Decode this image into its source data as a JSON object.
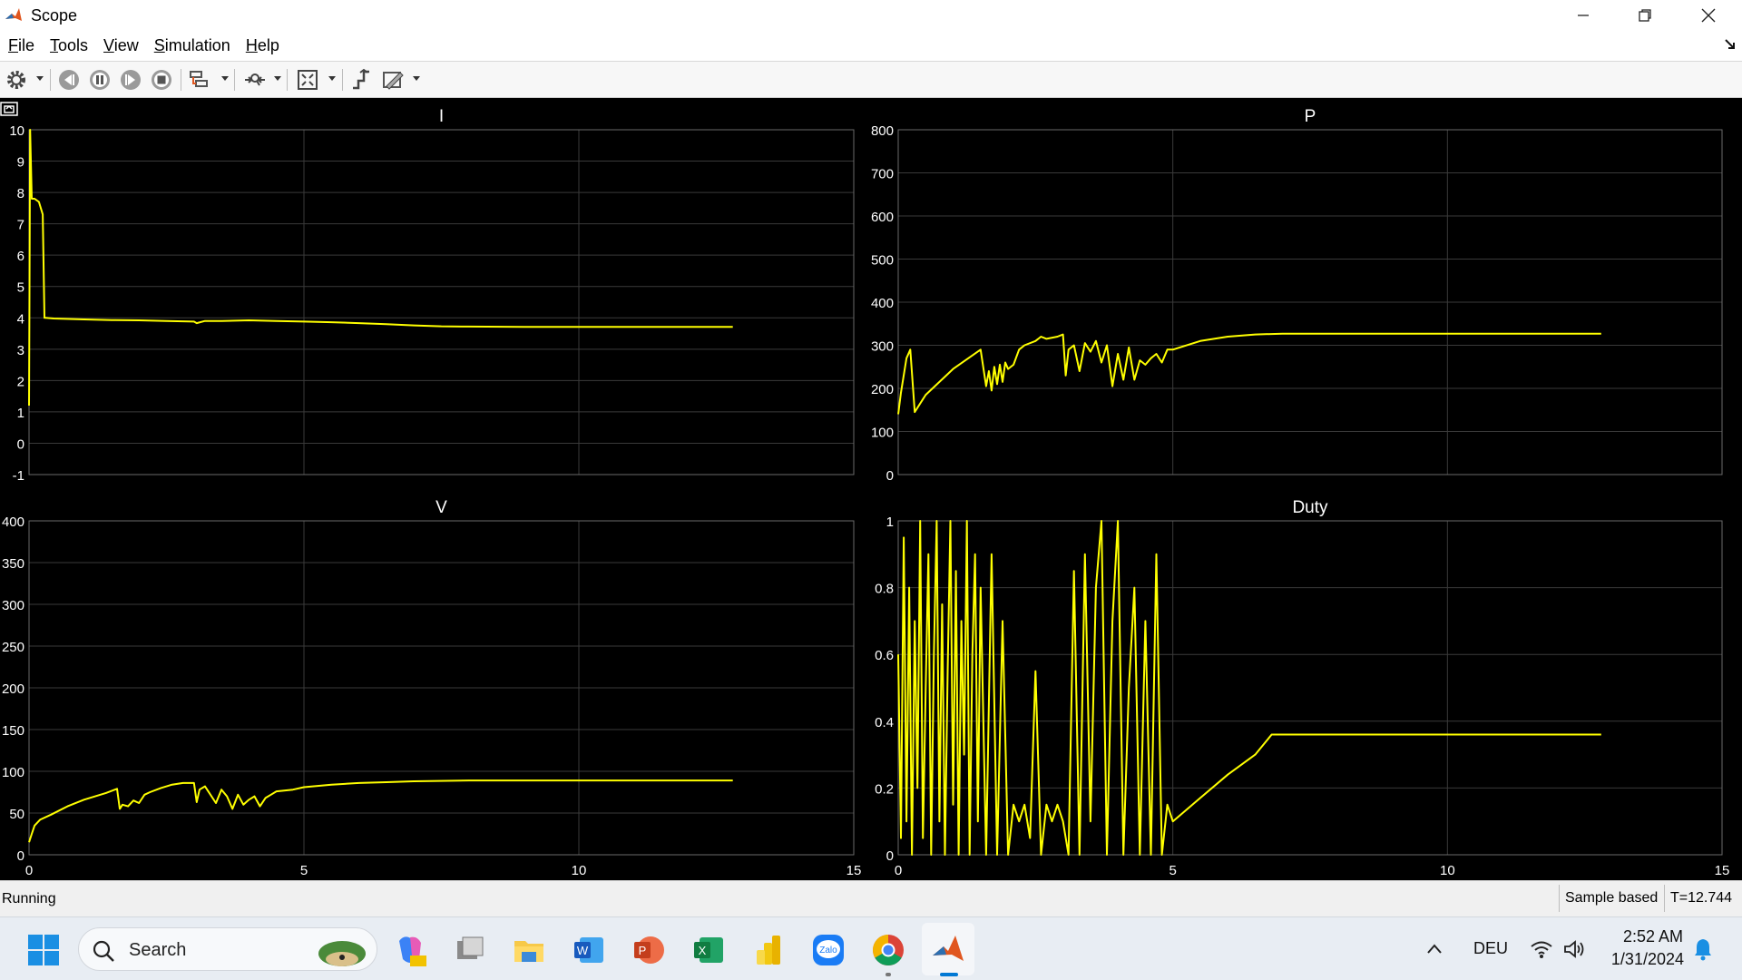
{
  "window": {
    "title": "Scope"
  },
  "menu": [
    "File",
    "Tools",
    "View",
    "Simulation",
    "Help"
  ],
  "toolbar": {
    "icons": [
      "gear-icon",
      "step-back-icon",
      "pause-icon",
      "step-forward-icon",
      "stop-icon",
      "signal-select-icon",
      "zoom-icon",
      "autoscale-icon",
      "cursor-measure-icon",
      "style-icon"
    ]
  },
  "status": {
    "text": "Running",
    "sample_mode": "Sample based",
    "time": "T=12.744"
  },
  "taskbar": {
    "search_label": "Search",
    "lang": "DEU",
    "time": "2:52 AM",
    "date": "1/31/2024"
  },
  "colors": {
    "plot_bg": "#000000",
    "trace": "#ffff00",
    "grid": "#3a3a3a",
    "axis_text": "#ffffff"
  },
  "chart_data": [
    {
      "type": "line",
      "title": "I",
      "xlim": [
        0,
        15
      ],
      "ylim": [
        -1,
        10
      ],
      "xticks": [],
      "yticks": [
        -1,
        0,
        1,
        2,
        3,
        4,
        5,
        6,
        7,
        8,
        9,
        10
      ],
      "grid": true,
      "x": [
        0,
        0.02,
        0.05,
        0.1,
        0.18,
        0.25,
        0.28,
        0.3,
        0.45,
        1,
        1.5,
        2,
        2.5,
        3,
        3.05,
        3.2,
        3.5,
        4,
        4.5,
        5,
        5.5,
        6,
        6.5,
        7,
        7.5,
        8,
        9,
        10,
        11,
        12,
        12.8
      ],
      "y": [
        1.2,
        10,
        7.8,
        7.8,
        7.7,
        7.3,
        4,
        4.0,
        3.98,
        3.95,
        3.93,
        3.92,
        3.9,
        3.88,
        3.83,
        3.9,
        3.9,
        3.92,
        3.9,
        3.88,
        3.86,
        3.83,
        3.8,
        3.76,
        3.73,
        3.72,
        3.71,
        3.71,
        3.71,
        3.71,
        3.71
      ]
    },
    {
      "type": "line",
      "title": "P",
      "xlim": [
        0,
        15
      ],
      "ylim": [
        0,
        800
      ],
      "xticks": [],
      "yticks": [
        0,
        100,
        200,
        300,
        400,
        500,
        600,
        700,
        800
      ],
      "grid": true,
      "x": [
        0,
        0.05,
        0.15,
        0.22,
        0.3,
        0.5,
        1.0,
        1.5,
        1.6,
        1.65,
        1.7,
        1.75,
        1.8,
        1.85,
        1.9,
        1.95,
        2.0,
        2.1,
        2.2,
        2.3,
        2.5,
        2.6,
        2.7,
        2.9,
        3.0,
        3.05,
        3.1,
        3.2,
        3.3,
        3.4,
        3.5,
        3.6,
        3.7,
        3.8,
        3.9,
        4.0,
        4.1,
        4.2,
        4.3,
        4.4,
        4.5,
        4.6,
        4.7,
        4.8,
        4.9,
        5.0,
        5.5,
        6.0,
        6.5,
        7.0,
        8.0,
        9.0,
        10.0,
        11.0,
        12.0,
        12.8
      ],
      "y": [
        140,
        190,
        270,
        290,
        145,
        185,
        245,
        290,
        205,
        240,
        195,
        250,
        210,
        255,
        215,
        260,
        245,
        255,
        290,
        300,
        310,
        320,
        315,
        320,
        325,
        230,
        290,
        300,
        240,
        305,
        285,
        310,
        260,
        300,
        205,
        280,
        220,
        295,
        220,
        265,
        255,
        270,
        280,
        260,
        290,
        290,
        310,
        320,
        325,
        327,
        327,
        327,
        327,
        327,
        327,
        327
      ]
    },
    {
      "type": "line",
      "title": "V",
      "xlim": [
        0,
        15
      ],
      "ylim": [
        0,
        400
      ],
      "xticks": [
        0,
        5,
        10,
        15
      ],
      "yticks": [
        0,
        50,
        100,
        150,
        200,
        250,
        300,
        350,
        400
      ],
      "grid": true,
      "x": [
        0,
        0.05,
        0.1,
        0.2,
        0.4,
        0.7,
        1.0,
        1.4,
        1.6,
        1.65,
        1.7,
        1.8,
        1.9,
        2.0,
        2.1,
        2.2,
        2.4,
        2.6,
        2.8,
        3.0,
        3.05,
        3.1,
        3.2,
        3.4,
        3.5,
        3.6,
        3.7,
        3.8,
        3.9,
        4.0,
        4.1,
        4.2,
        4.3,
        4.4,
        4.5,
        4.8,
        5.0,
        5.5,
        6.0,
        6.5,
        7.0,
        8.0,
        9.0,
        10.0,
        11.0,
        12.0,
        12.8
      ],
      "y": [
        15,
        25,
        35,
        42,
        48,
        58,
        66,
        74,
        79,
        55,
        60,
        58,
        65,
        62,
        72,
        75,
        80,
        84,
        86,
        86,
        63,
        78,
        82,
        62,
        78,
        70,
        55,
        72,
        60,
        66,
        70,
        58,
        68,
        72,
        76,
        78,
        81,
        84,
        86,
        87,
        88,
        89,
        89,
        89,
        89,
        89,
        89
      ]
    },
    {
      "type": "line",
      "title": "Duty",
      "xlim": [
        0,
        15
      ],
      "ylim": [
        0,
        1
      ],
      "xticks": [
        0,
        5,
        10,
        15
      ],
      "yticks": [
        0,
        0.2,
        0.4,
        0.6,
        0.8,
        1
      ],
      "grid": true,
      "x": [
        0,
        0.05,
        0.1,
        0.15,
        0.2,
        0.25,
        0.3,
        0.35,
        0.4,
        0.45,
        0.5,
        0.55,
        0.6,
        0.65,
        0.7,
        0.75,
        0.8,
        0.85,
        0.9,
        0.95,
        1.0,
        1.05,
        1.1,
        1.15,
        1.2,
        1.25,
        1.3,
        1.35,
        1.4,
        1.45,
        1.5,
        1.6,
        1.7,
        1.8,
        1.9,
        2.0,
        2.1,
        2.2,
        2.3,
        2.4,
        2.5,
        2.6,
        2.7,
        2.8,
        2.9,
        3.0,
        3.1,
        3.2,
        3.3,
        3.4,
        3.5,
        3.6,
        3.7,
        3.8,
        3.9,
        4.0,
        4.1,
        4.2,
        4.3,
        4.4,
        4.5,
        4.6,
        4.7,
        4.8,
        4.9,
        5.0,
        5.5,
        6.0,
        6.5,
        6.8,
        7.0,
        8.0,
        9.0,
        10.0,
        11.0,
        12.0,
        12.8
      ],
      "y": [
        0.6,
        0.05,
        0.95,
        0.1,
        0.8,
        0.0,
        0.7,
        0.2,
        1.0,
        0.05,
        0.5,
        0.9,
        0.0,
        0.6,
        1.0,
        0.1,
        0.75,
        0.0,
        0.55,
        1.0,
        0.15,
        0.85,
        0.0,
        0.7,
        0.3,
        1.0,
        0.0,
        0.6,
        0.9,
        0.1,
        0.8,
        0.0,
        0.9,
        0.0,
        0.7,
        0.0,
        0.15,
        0.1,
        0.15,
        0.05,
        0.55,
        0.0,
        0.15,
        0.1,
        0.15,
        0.1,
        0.0,
        0.85,
        0.0,
        0.9,
        0.1,
        0.8,
        1.0,
        0.0,
        0.7,
        1.0,
        0.0,
        0.5,
        0.8,
        0.0,
        0.7,
        0.0,
        0.9,
        0.0,
        0.15,
        0.1,
        0.17,
        0.24,
        0.3,
        0.36,
        0.36,
        0.36,
        0.36,
        0.36,
        0.36,
        0.36,
        0.36
      ]
    }
  ]
}
